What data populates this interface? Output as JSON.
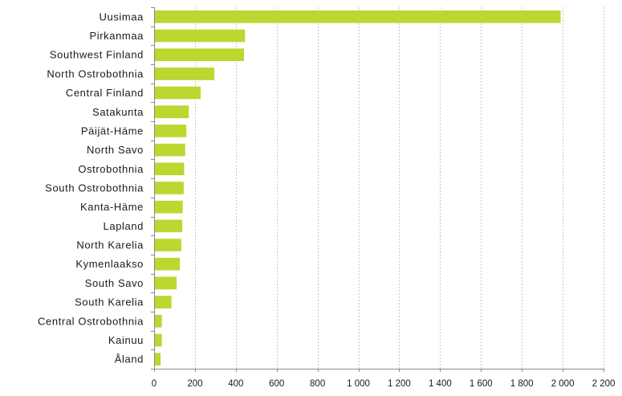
{
  "chart_data": {
    "type": "bar",
    "orientation": "horizontal",
    "title": "",
    "xlabel": "",
    "ylabel": "",
    "categories": [
      "Uusimaa",
      "Pirkanmaa",
      "Southwest Finland",
      "North Ostrobothnia",
      "Central Finland",
      "Satakunta",
      "Päijät-Häme",
      "North Savo",
      "Ostrobothnia",
      "South Ostrobothnia",
      "Kanta-Häme",
      "Lapland",
      "North Karelia",
      "Kymenlaakso",
      "South Savo",
      "South Karelia",
      "Central Ostrobothnia",
      "Kainuu",
      "Åland"
    ],
    "values": [
      1990,
      445,
      440,
      295,
      228,
      170,
      158,
      152,
      147,
      145,
      140,
      138,
      133,
      126,
      110,
      85,
      38,
      38,
      32
    ],
    "xlim": [
      0,
      2200
    ],
    "x_ticks": [
      0,
      200,
      400,
      600,
      800,
      1000,
      1200,
      1400,
      1600,
      1800,
      2000,
      2200
    ],
    "x_tick_labels": [
      "0",
      "200",
      "400",
      "600",
      "800",
      "1 000",
      "1 200",
      "1 400",
      "1 600",
      "1 800",
      "2 000",
      "2 200"
    ],
    "grid": "vertical",
    "bar_color": "#bdd630",
    "grid_color": "#c8c8c8"
  }
}
